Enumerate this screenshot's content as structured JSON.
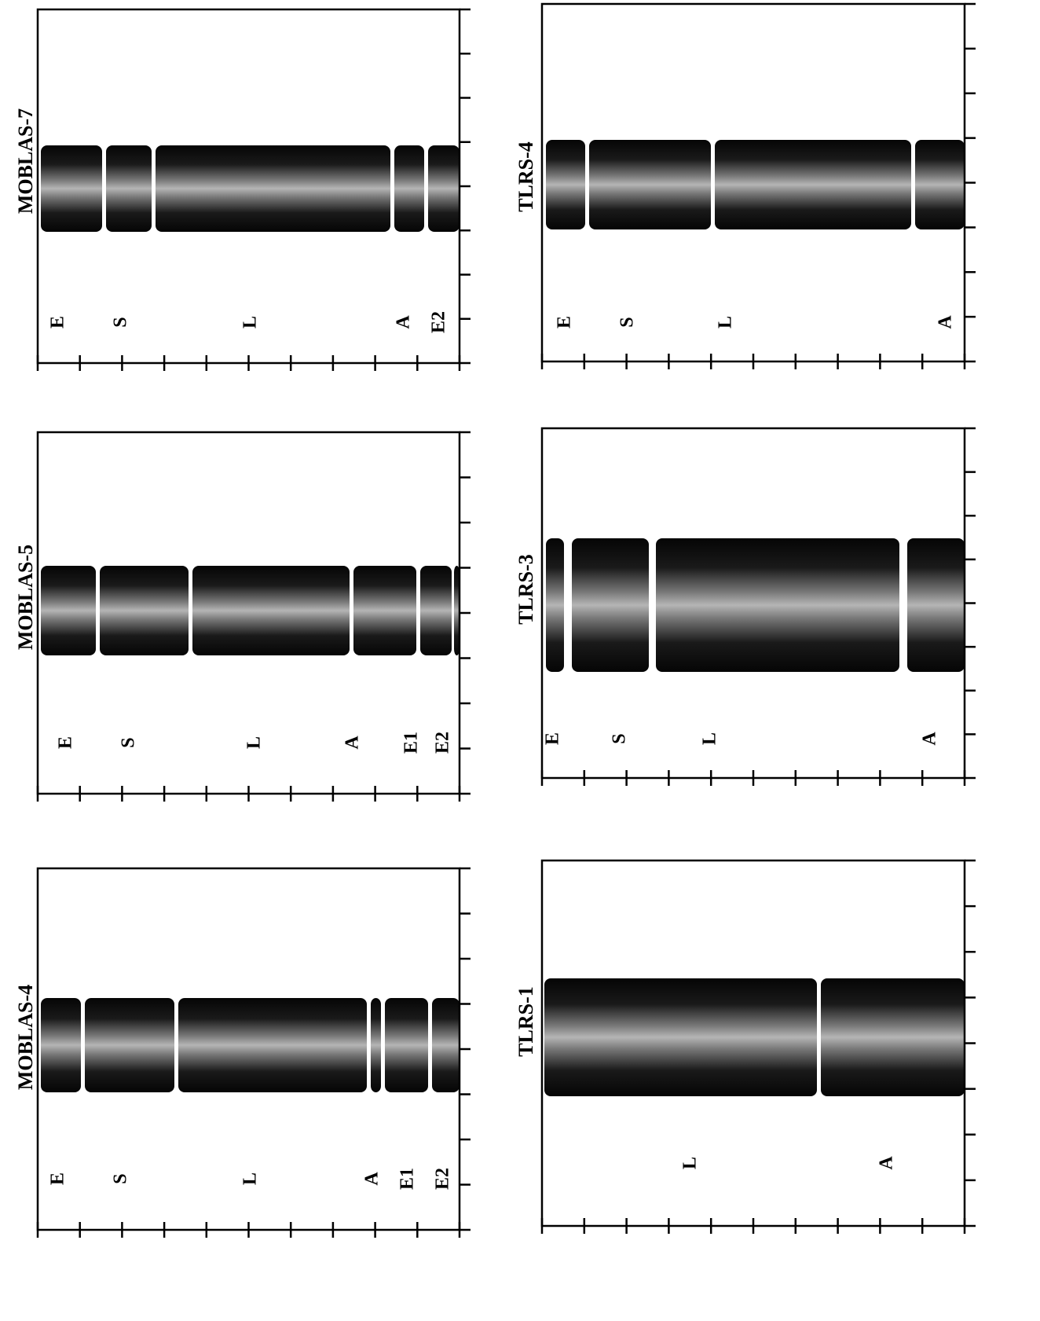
{
  "panels": [
    {
      "title": "MOBLAS-7",
      "labels": [
        "E",
        "S",
        "L",
        "A",
        "E2"
      ]
    },
    {
      "title": "MOBLAS-5",
      "labels": [
        "E",
        "S",
        "L",
        "A",
        "E1",
        "E2"
      ]
    },
    {
      "title": "MOBLAS-4",
      "labels": [
        "E",
        "S",
        "L",
        "A",
        "E1",
        "E2"
      ]
    },
    {
      "title": "TLRS-4",
      "labels": [
        "E",
        "S",
        "L",
        "A"
      ]
    },
    {
      "title": "TLRS-3",
      "labels": [
        "E",
        "S",
        "L",
        "A"
      ]
    },
    {
      "title": "TLRS-1",
      "labels": [
        "L",
        "A"
      ]
    }
  ]
}
